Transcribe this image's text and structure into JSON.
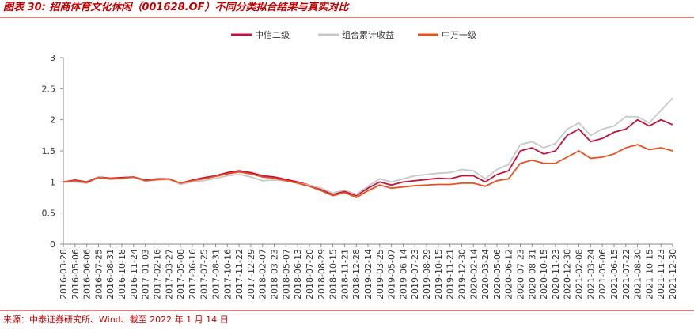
{
  "chart_data": {
    "type": "line",
    "title": "图表 30: 招商体育文化休闲（001628.OF）不同分类拟合结果与真实对比",
    "source": "来源：中泰证券研究所、Wind、截至 2022 年 1 月 14 日",
    "categories": [
      "2016-03-28",
      "2016-05-06",
      "2016-06-06",
      "2016-07-25",
      "2016-08-31",
      "2016-10-18",
      "2016-11-24",
      "2017-01-03",
      "2017-02-16",
      "2017-03-27",
      "2017-05-08",
      "2017-06-16",
      "2017-07-25",
      "2017-08-31",
      "2017-10-16",
      "2017-11-22",
      "2017-12-29",
      "2018-02-07",
      "2018-03-23",
      "2018-05-07",
      "2018-06-13",
      "2018-07-20",
      "2018-08-29",
      "2018-10-15",
      "2018-11-21",
      "2018-12-28",
      "2019-02-14",
      "2019-03-25",
      "2019-05-07",
      "2019-06-14",
      "2019-07-23",
      "2019-08-29",
      "2019-10-15",
      "2019-11-21",
      "2019-12-30",
      "2020-02-14",
      "2020-03-24",
      "2020-05-06",
      "2020-06-12",
      "2020-07-23",
      "2020-08-31",
      "2020-10-15",
      "2020-11-23",
      "2020-12-30",
      "2021-02-08",
      "2021-03-24",
      "2021-05-06",
      "2021-06-15",
      "2021-07-22",
      "2021-08-30",
      "2021-10-15",
      "2021-11-23",
      "2021-12-30"
    ],
    "series": [
      {
        "name": "中信二级",
        "color": "#c0143c",
        "values": [
          1.0,
          1.03,
          1.0,
          1.08,
          1.06,
          1.07,
          1.08,
          1.03,
          1.05,
          1.05,
          0.98,
          1.03,
          1.07,
          1.1,
          1.15,
          1.18,
          1.15,
          1.1,
          1.08,
          1.04,
          1.0,
          0.95,
          0.88,
          0.8,
          0.85,
          0.78,
          0.9,
          1.0,
          0.95,
          1.0,
          1.02,
          1.04,
          1.06,
          1.05,
          1.1,
          1.1,
          1.0,
          1.12,
          1.18,
          1.5,
          1.55,
          1.45,
          1.5,
          1.75,
          1.85,
          1.65,
          1.7,
          1.8,
          1.85,
          2.0,
          1.9,
          2.0,
          1.92
        ]
      },
      {
        "name": "组合累计收益",
        "color": "#c8c8c8",
        "values": [
          1.0,
          1.0,
          0.98,
          1.08,
          1.04,
          1.05,
          1.07,
          1.01,
          1.03,
          1.04,
          0.96,
          1.0,
          1.02,
          1.06,
          1.1,
          1.12,
          1.08,
          1.02,
          1.03,
          1.02,
          0.98,
          0.95,
          0.9,
          0.82,
          0.87,
          0.8,
          0.93,
          1.05,
          1.0,
          1.05,
          1.1,
          1.12,
          1.14,
          1.15,
          1.2,
          1.18,
          1.05,
          1.2,
          1.28,
          1.6,
          1.65,
          1.55,
          1.62,
          1.85,
          1.95,
          1.75,
          1.85,
          1.9,
          2.05,
          2.05,
          1.95,
          2.15,
          2.35
        ]
      },
      {
        "name": "中万一级",
        "color": "#e8501e",
        "values": [
          1.0,
          1.02,
          0.99,
          1.07,
          1.05,
          1.06,
          1.08,
          1.02,
          1.04,
          1.05,
          0.98,
          1.02,
          1.05,
          1.09,
          1.13,
          1.16,
          1.13,
          1.08,
          1.06,
          1.02,
          0.98,
          0.93,
          0.86,
          0.78,
          0.83,
          0.75,
          0.86,
          0.95,
          0.9,
          0.92,
          0.94,
          0.95,
          0.96,
          0.96,
          0.98,
          0.98,
          0.93,
          1.02,
          1.05,
          1.3,
          1.35,
          1.3,
          1.3,
          1.4,
          1.5,
          1.38,
          1.4,
          1.45,
          1.55,
          1.6,
          1.52,
          1.55,
          1.5
        ]
      }
    ],
    "ylim": [
      0,
      3
    ],
    "yticks": [
      0,
      0.5,
      1,
      1.5,
      2,
      2.5,
      3
    ]
  }
}
